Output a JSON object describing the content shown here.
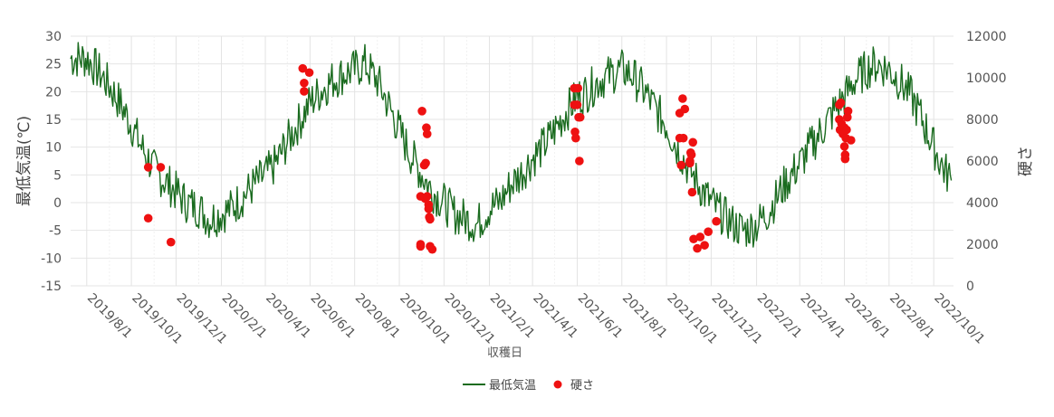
{
  "chart_data": {
    "type": "line+scatter",
    "xlabel": "収穫日",
    "ylabel_left": "最低気温(℃)",
    "ylabel_right": "硬さ",
    "ylim_left": [
      -15,
      30
    ],
    "ylim_right": [
      0,
      12000
    ],
    "yticks_left": [
      "30",
      "25",
      "20",
      "15",
      "10",
      "5",
      "0",
      "-5",
      "-10",
      "-15"
    ],
    "yticks_right": [
      "12000",
      "10000",
      "8000",
      "6000",
      "4000",
      "2000",
      "0"
    ],
    "xticks": [
      "2019/8/1",
      "2019/10/1",
      "2019/12/1",
      "2020/2/1",
      "2020/4/1",
      "2020/6/1",
      "2020/8/1",
      "2020/10/1",
      "2020/12/1",
      "2021/2/1",
      "2021/4/1",
      "2021/6/1",
      "2021/8/1",
      "2021/10/1",
      "2021/12/1",
      "2022/2/1",
      "2022/4/1",
      "2022/6/1",
      "2022/8/1",
      "2022/10/1"
    ],
    "grid": true,
    "legend_position": "bottom",
    "series": [
      {
        "name": "最低気温",
        "type": "line",
        "color": "#1a6b1f",
        "axis": "left",
        "points": [
          [
            "2019-07-10",
            26
          ],
          [
            "2019-08-01",
            26
          ],
          [
            "2019-08-15",
            24
          ],
          [
            "2019-09-01",
            21
          ],
          [
            "2019-09-15",
            18
          ],
          [
            "2019-10-01",
            14
          ],
          [
            "2019-10-15",
            10
          ],
          [
            "2019-11-01",
            6
          ],
          [
            "2019-11-15",
            4
          ],
          [
            "2019-12-01",
            2
          ],
          [
            "2019-12-15",
            0
          ],
          [
            "2020-01-01",
            -1
          ],
          [
            "2020-01-15",
            -3
          ],
          [
            "2020-02-01",
            -2
          ],
          [
            "2020-02-15",
            -1
          ],
          [
            "2020-03-01",
            1
          ],
          [
            "2020-03-15",
            3
          ],
          [
            "2020-04-01",
            5
          ],
          [
            "2020-04-15",
            7
          ],
          [
            "2020-05-01",
            11
          ],
          [
            "2020-05-15",
            14
          ],
          [
            "2020-06-01",
            18
          ],
          [
            "2020-06-15",
            20
          ],
          [
            "2020-07-01",
            22
          ],
          [
            "2020-07-15",
            23
          ],
          [
            "2020-08-01",
            24
          ],
          [
            "2020-08-15",
            25
          ],
          [
            "2020-09-01",
            22
          ],
          [
            "2020-09-15",
            18
          ],
          [
            "2020-10-01",
            13
          ],
          [
            "2020-10-15",
            9
          ],
          [
            "2020-11-01",
            5
          ],
          [
            "2020-11-15",
            2
          ],
          [
            "2020-12-01",
            0
          ],
          [
            "2020-12-15",
            -2
          ],
          [
            "2021-01-01",
            -3
          ],
          [
            "2021-01-15",
            -4
          ],
          [
            "2021-02-01",
            -1
          ],
          [
            "2021-02-15",
            0
          ],
          [
            "2021-03-01",
            3
          ],
          [
            "2021-03-15",
            5
          ],
          [
            "2021-04-01",
            8
          ],
          [
            "2021-04-15",
            10
          ],
          [
            "2021-05-01",
            13
          ],
          [
            "2021-05-15",
            16
          ],
          [
            "2021-06-01",
            19
          ],
          [
            "2021-06-15",
            20
          ],
          [
            "2021-07-01",
            22
          ],
          [
            "2021-07-15",
            23
          ],
          [
            "2021-08-01",
            24
          ],
          [
            "2021-08-15",
            23
          ],
          [
            "2021-09-01",
            20
          ],
          [
            "2021-09-15",
            17
          ],
          [
            "2021-10-01",
            14
          ],
          [
            "2021-10-15",
            10
          ],
          [
            "2021-11-01",
            6
          ],
          [
            "2021-11-15",
            3
          ],
          [
            "2021-12-01",
            0
          ],
          [
            "2021-12-15",
            -2
          ],
          [
            "2022-01-01",
            -4
          ],
          [
            "2022-01-15",
            -5
          ],
          [
            "2022-02-01",
            -4
          ],
          [
            "2022-02-15",
            -2
          ],
          [
            "2022-03-01",
            1
          ],
          [
            "2022-03-15",
            4
          ],
          [
            "2022-04-01",
            7
          ],
          [
            "2022-04-15",
            10
          ],
          [
            "2022-05-01",
            13
          ],
          [
            "2022-05-15",
            16
          ],
          [
            "2022-06-01",
            19
          ],
          [
            "2022-06-15",
            22
          ],
          [
            "2022-07-01",
            24
          ],
          [
            "2022-07-15",
            25
          ],
          [
            "2022-08-01",
            24
          ],
          [
            "2022-08-15",
            22
          ],
          [
            "2022-09-01",
            19
          ],
          [
            "2022-09-15",
            15
          ],
          [
            "2022-10-01",
            10
          ],
          [
            "2022-10-15",
            6
          ],
          [
            "2022-10-25",
            4
          ]
        ]
      },
      {
        "name": "硬さ",
        "type": "scatter",
        "color": "#ee1111",
        "axis": "right",
        "points": [
          [
            "2019-10-24",
            5700
          ],
          [
            "2019-10-24",
            3250
          ],
          [
            "2019-11-10",
            5700
          ],
          [
            "2019-11-24",
            2100
          ],
          [
            "2020-05-22",
            10450
          ],
          [
            "2020-05-24",
            9750
          ],
          [
            "2020-05-24",
            9350
          ],
          [
            "2020-05-31",
            10250
          ],
          [
            "2020-10-30",
            4300
          ],
          [
            "2020-10-30",
            2000
          ],
          [
            "2020-10-30",
            1900
          ],
          [
            "2020-11-01",
            8400
          ],
          [
            "2020-11-04",
            5800
          ],
          [
            "2020-11-05",
            4200
          ],
          [
            "2020-11-06",
            5900
          ],
          [
            "2020-11-07",
            7600
          ],
          [
            "2020-11-08",
            4300
          ],
          [
            "2020-11-08",
            7300
          ],
          [
            "2020-11-10",
            3900
          ],
          [
            "2020-11-10",
            3700
          ],
          [
            "2020-11-11",
            3300
          ],
          [
            "2020-11-12",
            3200
          ],
          [
            "2020-11-12",
            1900
          ],
          [
            "2020-11-15",
            1750
          ],
          [
            "2021-05-28",
            9500
          ],
          [
            "2021-05-28",
            8700
          ],
          [
            "2021-05-29",
            7400
          ],
          [
            "2021-05-30",
            7100
          ],
          [
            "2021-06-01",
            8700
          ],
          [
            "2021-06-02",
            9500
          ],
          [
            "2021-06-03",
            8100
          ],
          [
            "2021-06-04",
            6000
          ],
          [
            "2021-06-05",
            8100
          ],
          [
            "2021-10-19",
            8300
          ],
          [
            "2021-10-19",
            7100
          ],
          [
            "2021-10-21",
            5800
          ],
          [
            "2021-10-23",
            9000
          ],
          [
            "2021-10-24",
            7100
          ],
          [
            "2021-10-26",
            8500
          ],
          [
            "2021-11-02",
            6000
          ],
          [
            "2021-11-02",
            5900
          ],
          [
            "2021-11-03",
            6400
          ],
          [
            "2021-11-04",
            6300
          ],
          [
            "2021-11-05",
            4500
          ],
          [
            "2021-11-06",
            6900
          ],
          [
            "2021-11-07",
            2250
          ],
          [
            "2021-11-12",
            1800
          ],
          [
            "2021-11-16",
            2350
          ],
          [
            "2021-11-22",
            1950
          ],
          [
            "2021-11-27",
            2600
          ],
          [
            "2021-12-08",
            3100
          ],
          [
            "2022-05-25",
            8700
          ],
          [
            "2022-05-25",
            8000
          ],
          [
            "2022-05-26",
            7500
          ],
          [
            "2022-05-27",
            8800
          ],
          [
            "2022-05-28",
            7800
          ],
          [
            "2022-05-30",
            7300
          ],
          [
            "2022-06-01",
            7600
          ],
          [
            "2022-06-01",
            6700
          ],
          [
            "2022-06-02",
            6300
          ],
          [
            "2022-06-02",
            6100
          ],
          [
            "2022-06-03",
            7100
          ],
          [
            "2022-06-04",
            7500
          ],
          [
            "2022-06-05",
            8100
          ],
          [
            "2022-06-06",
            8400
          ],
          [
            "2022-06-10",
            7000
          ]
        ]
      }
    ]
  }
}
